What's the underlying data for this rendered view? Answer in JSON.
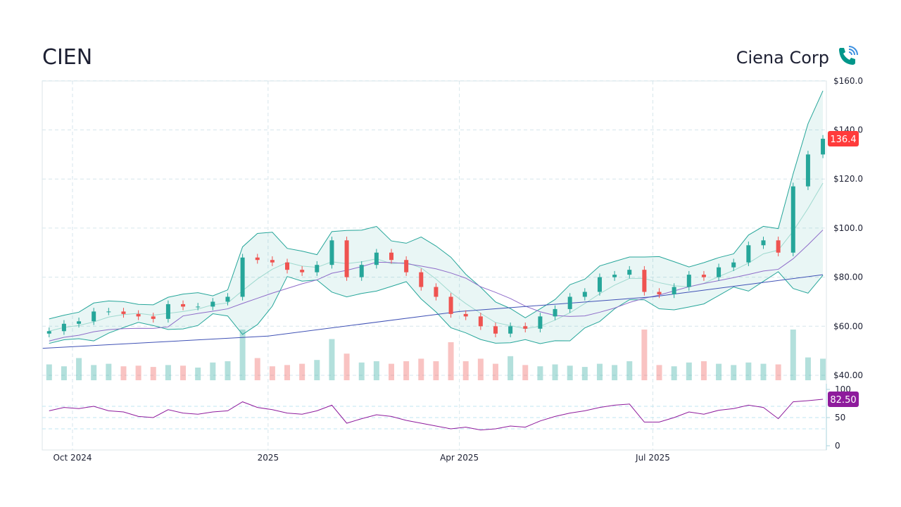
{
  "header": {
    "ticker": "CIEN",
    "company": "Ciena Corp",
    "icon": "phone-signal-icon"
  },
  "colors": {
    "up": "#26a69a",
    "down": "#ef5350",
    "band": "#26a69a",
    "sma_fast": "#9fd9cf",
    "sma_mid": "#8e6cc9",
    "sma_slow": "#3f51b5",
    "rsi": "#8e1b9c",
    "last_price_bg": "#ff3b3b",
    "rsi_badge_bg": "#8e1b9c"
  },
  "chart_data": {
    "type": "candlestick",
    "price_axis": {
      "ticks": [
        "$160.0",
        "$140.0",
        "$120.0",
        "$100.0",
        "$80.00",
        "$60.00",
        "$40.00"
      ],
      "tick_values": [
        160,
        140,
        120,
        100,
        80,
        60,
        40
      ],
      "ylim": [
        40,
        160
      ]
    },
    "rsi_axis": {
      "ticks": [
        "100",
        "50",
        "0"
      ],
      "tick_values": [
        100,
        50,
        0
      ],
      "ylim": [
        0,
        100
      ],
      "guides": [
        70,
        30
      ]
    },
    "x_ticks": [
      {
        "label": "Oct 2024",
        "date": "2024-10-01"
      },
      {
        "label": "2025",
        "date": "2025-01-01"
      },
      {
        "label": "Apr 2025",
        "date": "2025-04-01"
      },
      {
        "label": "Jul 2025",
        "date": "2025-07-01"
      }
    ],
    "grid": true,
    "last_price": "136.4",
    "last_rsi": "82.50",
    "dates": [
      "2024-09-20",
      "2024-09-27",
      "2024-10-04",
      "2024-10-11",
      "2024-10-18",
      "2024-10-25",
      "2024-11-01",
      "2024-11-08",
      "2024-11-15",
      "2024-11-22",
      "2024-11-29",
      "2024-12-06",
      "2024-12-13",
      "2024-12-20",
      "2024-12-27",
      "2025-01-03",
      "2025-01-10",
      "2025-01-17",
      "2025-01-24",
      "2025-01-31",
      "2025-02-07",
      "2025-02-14",
      "2025-02-21",
      "2025-02-28",
      "2025-03-07",
      "2025-03-14",
      "2025-03-21",
      "2025-03-28",
      "2025-04-04",
      "2025-04-11",
      "2025-04-18",
      "2025-04-25",
      "2025-05-02",
      "2025-05-09",
      "2025-05-16",
      "2025-05-23",
      "2025-05-30",
      "2025-06-06",
      "2025-06-13",
      "2025-06-20",
      "2025-06-27",
      "2025-07-04",
      "2025-07-11",
      "2025-07-18",
      "2025-07-25",
      "2025-08-01",
      "2025-08-08",
      "2025-08-15",
      "2025-08-22",
      "2025-08-29",
      "2025-09-05",
      "2025-09-12",
      "2025-09-19"
    ],
    "close": [
      58,
      61,
      62,
      66,
      66,
      65,
      64,
      63,
      69,
      68,
      68,
      70,
      72,
      88,
      87,
      86,
      83,
      82,
      85,
      95,
      80,
      85,
      90,
      87,
      82,
      76,
      72,
      65,
      64,
      60,
      57,
      60,
      59,
      64,
      67,
      72,
      74,
      80,
      81,
      83,
      74,
      73,
      76,
      81,
      80,
      84,
      86,
      93,
      95,
      90,
      117,
      130,
      136.4
    ],
    "volume_m": [
      2.5,
      2.2,
      3.5,
      2.4,
      2.6,
      2.2,
      2.3,
      2.1,
      2.4,
      2.3,
      2.0,
      2.8,
      3.0,
      8.0,
      3.5,
      2.2,
      2.4,
      2.6,
      3.2,
      6.5,
      4.2,
      2.8,
      3.0,
      2.6,
      3.0,
      3.4,
      3.0,
      6.0,
      3.0,
      3.4,
      2.6,
      3.8,
      2.4,
      2.2,
      2.5,
      2.3,
      2.1,
      2.6,
      2.4,
      3.0,
      8.0,
      2.4,
      2.2,
      2.8,
      3.0,
      2.6,
      2.4,
      2.8,
      2.6,
      2.5,
      8.0,
      3.6,
      3.4
    ],
    "rsi": [
      62,
      68,
      66,
      70,
      62,
      60,
      52,
      50,
      64,
      58,
      56,
      60,
      62,
      78,
      68,
      64,
      58,
      56,
      62,
      72,
      40,
      48,
      55,
      52,
      45,
      40,
      35,
      30,
      33,
      28,
      30,
      35,
      33,
      44,
      52,
      58,
      62,
      68,
      72,
      74,
      42,
      42,
      50,
      60,
      56,
      63,
      66,
      72,
      68,
      48,
      78,
      80,
      82.5
    ],
    "sma200": {
      "dates": [
        "2024-09-17",
        "2025-01-01",
        "2025-04-01",
        "2025-07-01",
        "2025-09-19"
      ],
      "values": [
        51,
        56,
        66,
        72,
        81
      ]
    }
  }
}
